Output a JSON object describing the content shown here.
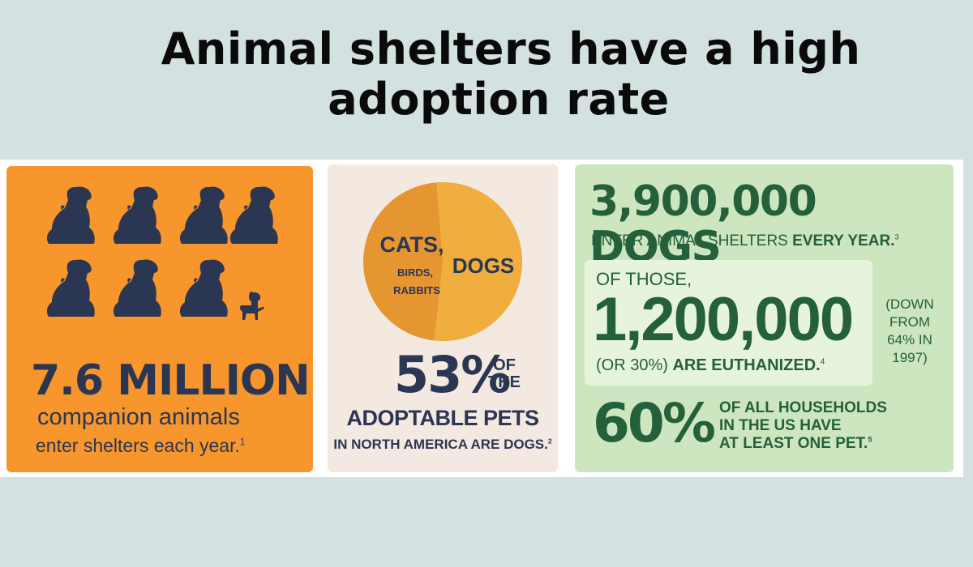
{
  "title": {
    "line1": "Animal shelters have a high",
    "line2": "adoption rate"
  },
  "colors": {
    "background": "#d3e1e1",
    "orange_panel": "#f7962c",
    "beige_panel": "#f3e9e1",
    "green_panel": "#cde6c0",
    "navy_text": "#2b3652",
    "green_text": "#24603a"
  },
  "panel_shelters": {
    "icons": [
      "dog-icon",
      "dog-icon",
      "dog-icon",
      "dog-icon",
      "dog-icon",
      "dog-icon",
      "dog-icon",
      "puppy-icon"
    ],
    "stat": "7.6 MILLION",
    "line1": "companion animals",
    "line2": "enter shelters each year.",
    "footnote": "1"
  },
  "panel_pets": {
    "pie": {
      "dogs_label": "DOGS",
      "other_label1": "CATS,",
      "other_label2": "BIRDS,",
      "other_label3": "RABBITS",
      "dogs_share": 0.53
    },
    "stat": "53%",
    "of": "OF",
    "the": "THE",
    "line1": "ADOPTABLE PETS",
    "line2": "IN NORTH AMERICA ARE DOGS.",
    "footnote": "2"
  },
  "panel_dogs": {
    "stat": "3,900,000 DOGS",
    "enter_text": "ENTER ANIMAL SHELTERS",
    "enter_bold": "EVERY YEAR.",
    "enter_footnote": "3",
    "of_those": "OF THOSE,",
    "euthanized_stat": "1,200,000",
    "euth_text": "(OR 30%)",
    "euth_bold": "ARE EUTHANIZED.",
    "euth_footnote": "4",
    "down_note": [
      "(DOWN",
      "FROM",
      "64% IN",
      "1997)"
    ],
    "household_stat": "60%",
    "household_lines": [
      "OF ALL HOUSEHOLDS",
      "IN THE US HAVE",
      "AT LEAST ONE PET."
    ],
    "household_footnote": "5"
  }
}
